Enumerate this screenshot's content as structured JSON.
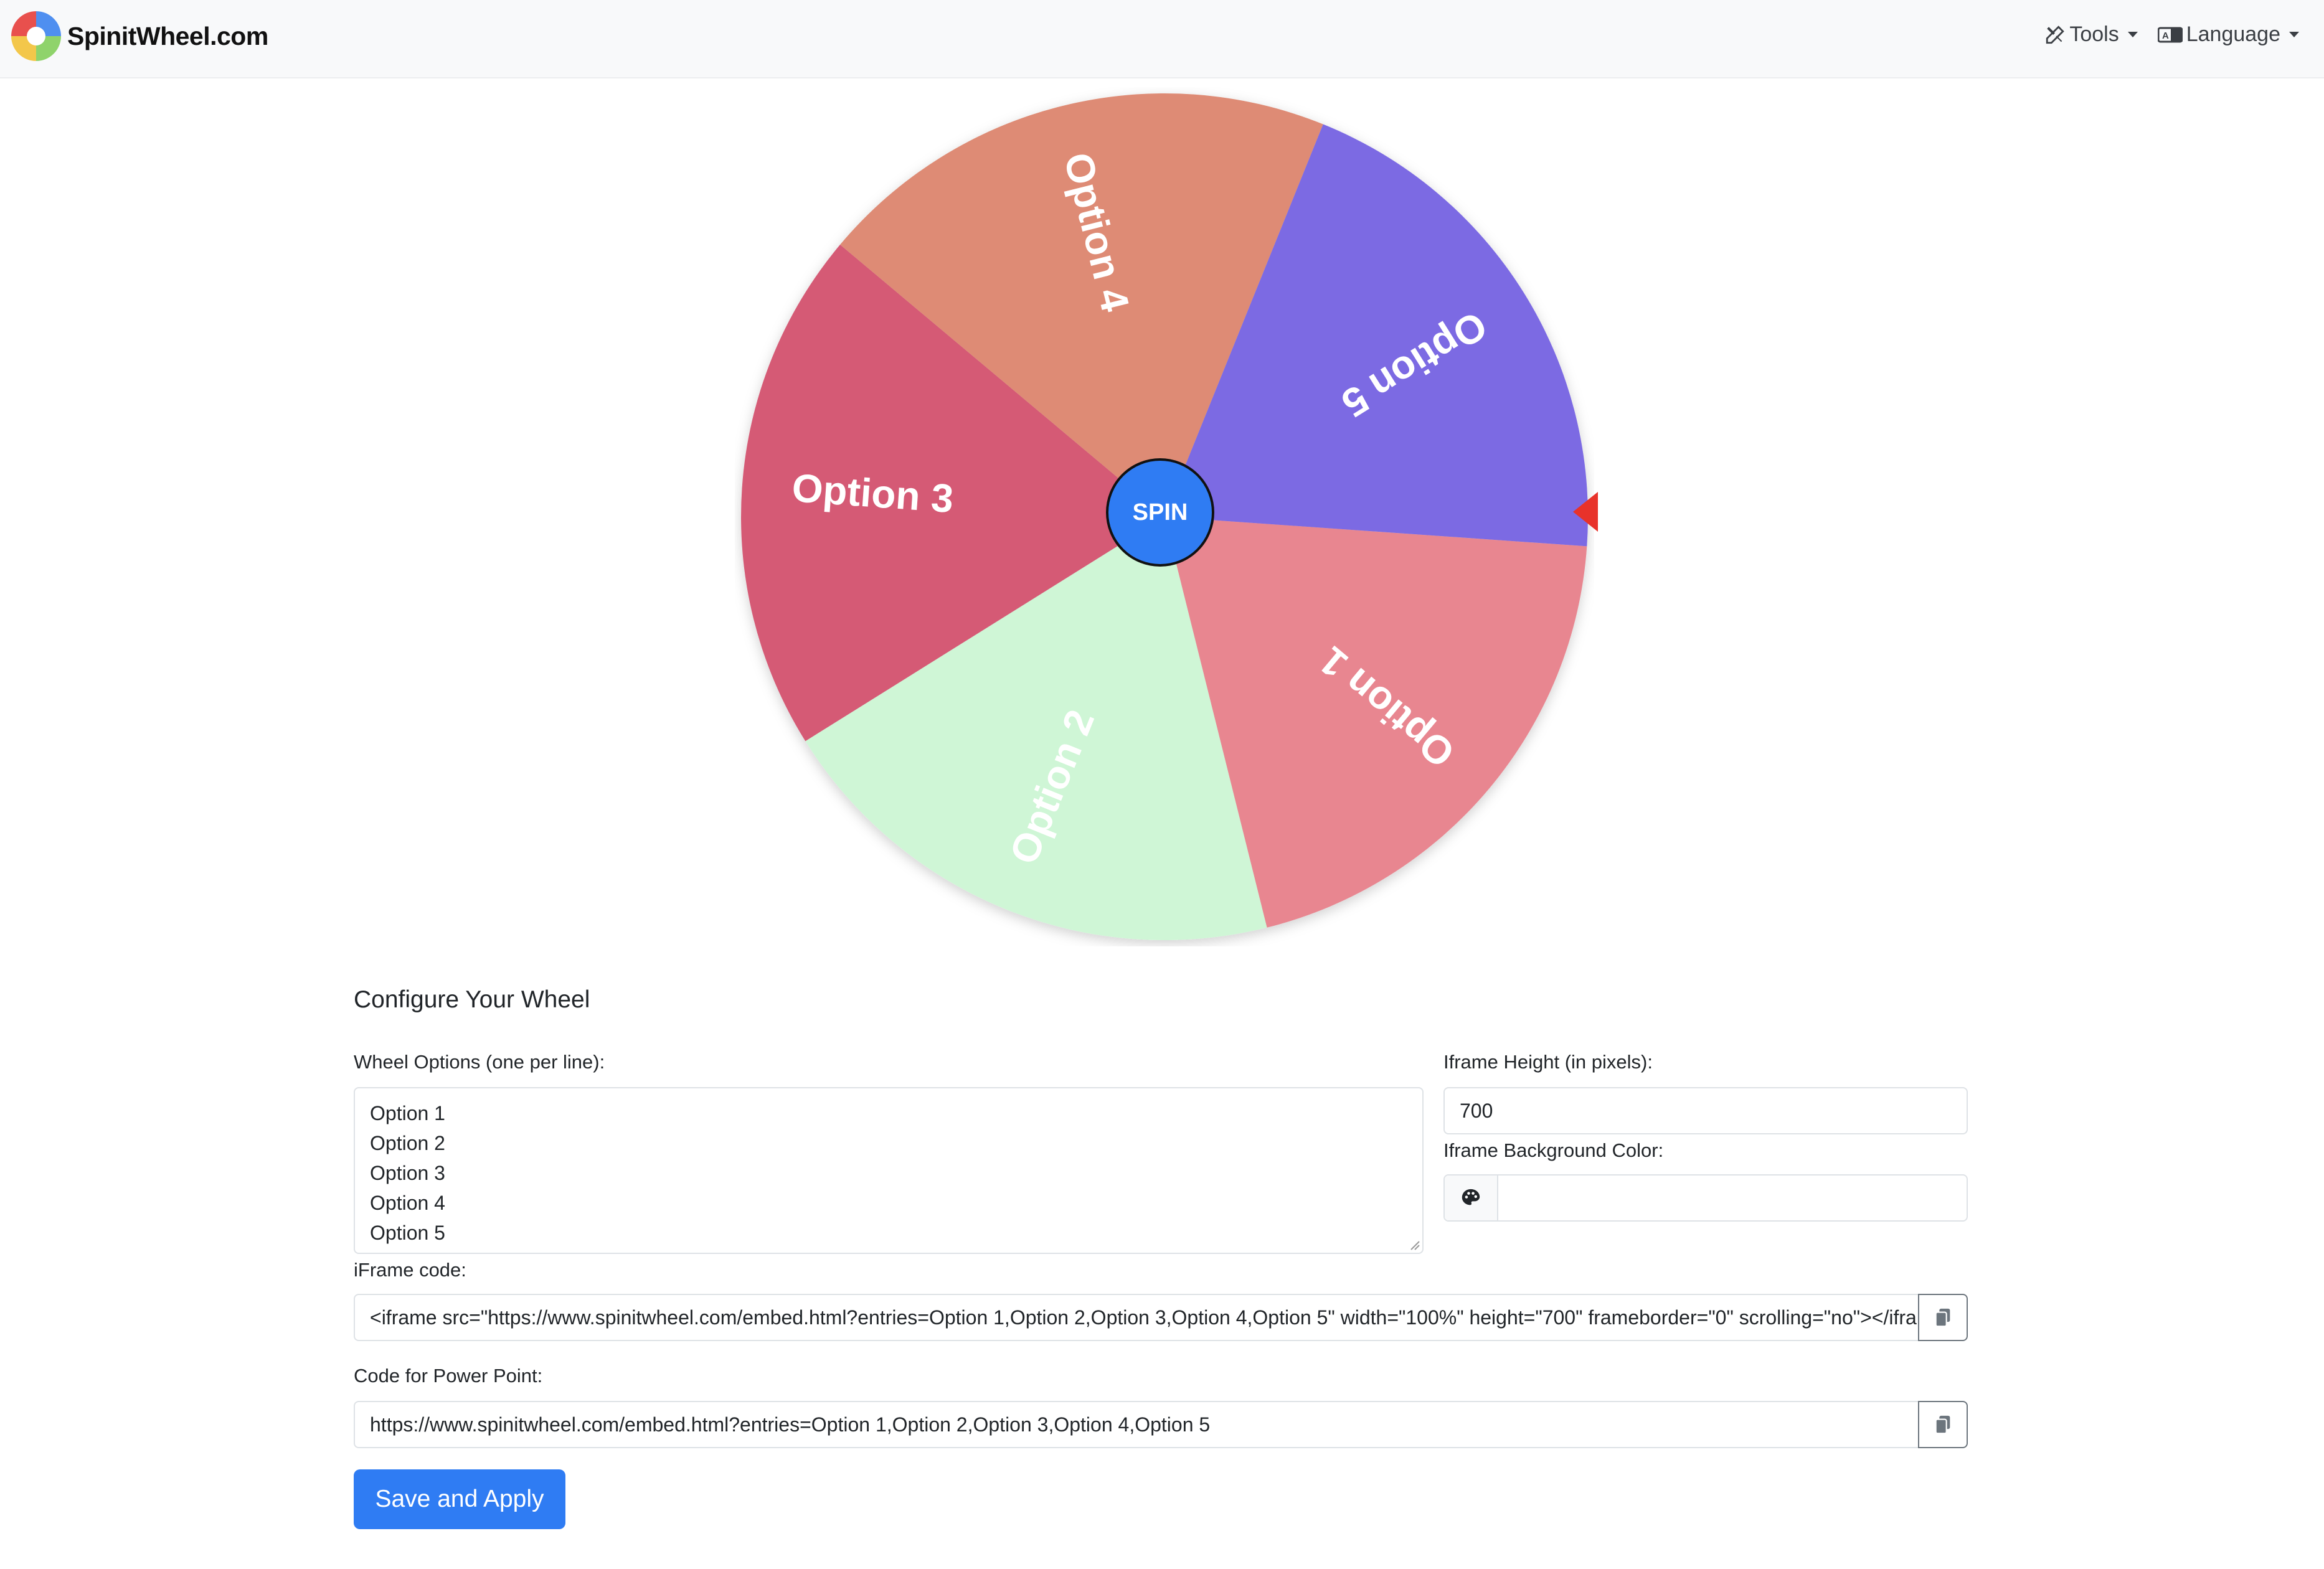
{
  "navbar": {
    "brand": "SpinitWheel.com",
    "tools_label": "Tools",
    "language_label": "Language"
  },
  "wheel": {
    "spin_label": "SPIN",
    "segments": [
      {
        "label": "Option 1",
        "color": "#e88690"
      },
      {
        "label": "Option 2",
        "color": "#cff6d6"
      },
      {
        "label": "Option 3",
        "color": "#d55a75"
      },
      {
        "label": "Option 4",
        "color": "#de8b74"
      },
      {
        "label": "Option 5",
        "color": "#7c6ae3"
      }
    ],
    "pointer_color": "#e8322a",
    "spin_color": "#2f7cf3"
  },
  "config": {
    "title": "Configure Your Wheel",
    "options_label": "Wheel Options (one per line):",
    "options": [
      "Option 1",
      "Option 2",
      "Option 3",
      "Option 4",
      "Option 5"
    ],
    "height_label": "Iframe Height (in pixels):",
    "height_value": "700",
    "bg_color_label": "Iframe Background Color:",
    "bg_color_value": "",
    "iframe_label": "iFrame code:",
    "iframe_code": "<iframe src=\"https://www.spinitwheel.com/embed.html?entries=Option 1,Option 2,Option 3,Option 4,Option 5\" width=\"100%\" height=\"700\" frameborder=\"0\" scrolling=\"no\"></iframe>",
    "ppt_label": "Code for Power Point:",
    "ppt_code": "https://www.spinitwheel.com/embed.html?entries=Option 1,Option 2,Option 3,Option 4,Option 5",
    "save_label": "Save and Apply"
  },
  "icons": {
    "tools": "tools-icon",
    "language": "translate-icon",
    "palette": "palette-icon",
    "copy": "clipboard-icon"
  }
}
